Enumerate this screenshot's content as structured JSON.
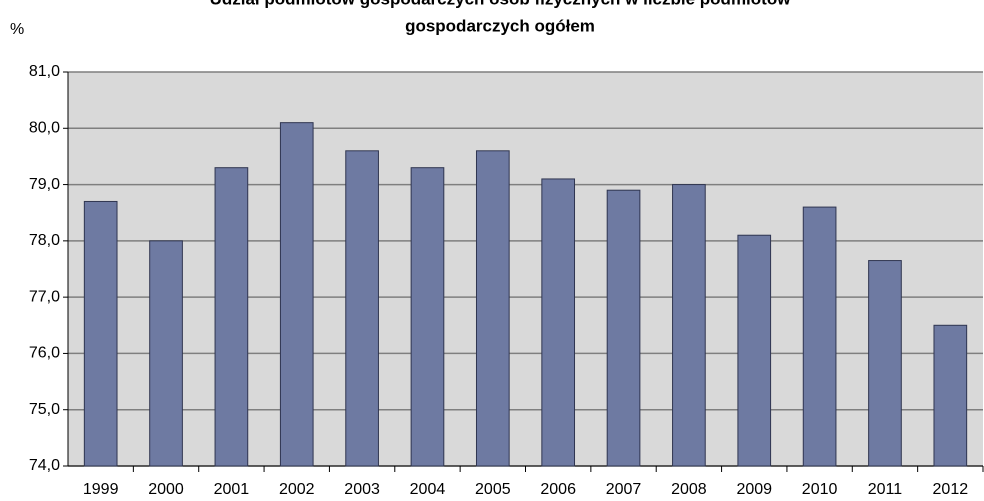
{
  "chart_data": {
    "type": "bar",
    "title": [
      "Udział podmiotów gospodarczych osób fizycznych w liczbie podmiotów",
      "gospodarczych ogółem"
    ],
    "y_label": "%",
    "categories": [
      "1999",
      "2000",
      "2001",
      "2002",
      "2003",
      "2004",
      "2005",
      "2006",
      "2007",
      "2008",
      "2009",
      "2010",
      "2011",
      "2012"
    ],
    "values": [
      78.7,
      78.0,
      79.3,
      80.1,
      79.6,
      79.3,
      79.6,
      79.1,
      78.9,
      79.0,
      78.1,
      78.6,
      77.65,
      76.5
    ],
    "color": "#6e7aa2",
    "ylim": [
      74,
      81
    ],
    "yticks": [
      {
        "value": 74,
        "label": "74,0"
      },
      {
        "value": 75,
        "label": "75,0"
      },
      {
        "value": 76,
        "label": "76,0"
      },
      {
        "value": 77,
        "label": "77,0"
      },
      {
        "value": 78,
        "label": "78,0"
      },
      {
        "value": 79,
        "label": "79,0"
      },
      {
        "value": 80,
        "label": "80,0"
      },
      {
        "value": 81,
        "label": "81,0"
      }
    ],
    "grid": true
  }
}
